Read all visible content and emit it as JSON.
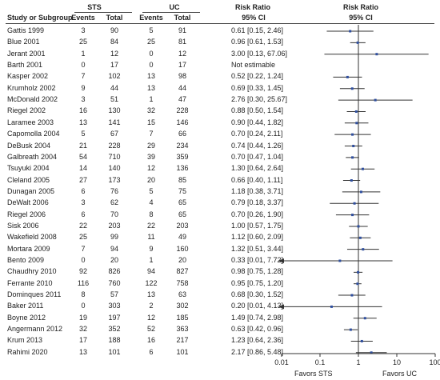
{
  "header": {
    "group1": "STS",
    "group2": "UC",
    "rr_title": "Risk Ratio",
    "rr_plot_title": "Risk Ratio",
    "study_col": "Study or Subgroup",
    "events1": "Events",
    "total1": "Total",
    "events2": "Events",
    "total2": "Total",
    "ci_col": "95% CI",
    "ci_plot": "95% CI"
  },
  "rows": [
    {
      "study": "Gattis 1999",
      "e1": "3",
      "t1": "90",
      "e2": "5",
      "t2": "91",
      "ci": "0.61 [0.15, 2.46]"
    },
    {
      "study": "Blue 2001",
      "e1": "25",
      "t1": "84",
      "e2": "25",
      "t2": "81",
      "ci": "0.96 [0.61, 1.53]"
    },
    {
      "study": "Jerant 2001",
      "e1": "1",
      "t1": "12",
      "e2": "0",
      "t2": "12",
      "ci": "3.00 [0.13, 67.06]"
    },
    {
      "study": "Barth 2001",
      "e1": "0",
      "t1": "17",
      "e2": "0",
      "t2": "17",
      "ci": "Not estimable"
    },
    {
      "study": "Kasper 2002",
      "e1": "7",
      "t1": "102",
      "e2": "13",
      "t2": "98",
      "ci": "0.52 [0.22, 1.24]"
    },
    {
      "study": "Krumholz 2002",
      "e1": "9",
      "t1": "44",
      "e2": "13",
      "t2": "44",
      "ci": "0.69 [0.33, 1.45]"
    },
    {
      "study": "McDonald 2002",
      "e1": "3",
      "t1": "51",
      "e2": "1",
      "t2": "47",
      "ci": "2.76 [0.30, 25.67]"
    },
    {
      "study": "Riegel 2002",
      "e1": "16",
      "t1": "130",
      "e2": "32",
      "t2": "228",
      "ci": "0.88 [0.50, 1.54]"
    },
    {
      "study": "Laramee 2003",
      "e1": "13",
      "t1": "141",
      "e2": "15",
      "t2": "146",
      "ci": "0.90 [0.44, 1.82]"
    },
    {
      "study": "Capomolla 2004",
      "e1": "5",
      "t1": "67",
      "e2": "7",
      "t2": "66",
      "ci": "0.70 [0.24, 2.11]"
    },
    {
      "study": "DeBusk 2004",
      "e1": "21",
      "t1": "228",
      "e2": "29",
      "t2": "234",
      "ci": "0.74 [0.44, 1.26]"
    },
    {
      "study": "Galbreath 2004",
      "e1": "54",
      "t1": "710",
      "e2": "39",
      "t2": "359",
      "ci": "0.70 [0.47, 1.04]"
    },
    {
      "study": "Tsuyuki 2004",
      "e1": "14",
      "t1": "140",
      "e2": "12",
      "t2": "136",
      "ci": "1.30 [0.64, 2.64]"
    },
    {
      "study": "Cleland 2005",
      "e1": "27",
      "t1": "173",
      "e2": "20",
      "t2": "85",
      "ci": "0.66 [0.40, 1.11]"
    },
    {
      "study": "Dunagan 2005",
      "e1": "6",
      "t1": "76",
      "e2": "5",
      "t2": "75",
      "ci": "1.18 [0.38, 3.71]"
    },
    {
      "study": "DeWalt 2006",
      "e1": "3",
      "t1": "62",
      "e2": "4",
      "t2": "65",
      "ci": "0.79 [0.18, 3.37]"
    },
    {
      "study": "Riegel 2006",
      "e1": "6",
      "t1": "70",
      "e2": "8",
      "t2": "65",
      "ci": "0.70 [0.26, 1.90]"
    },
    {
      "study": "Sisk 2006",
      "e1": "22",
      "t1": "203",
      "e2": "22",
      "t2": "203",
      "ci": "1.00 [0.57, 1.75]"
    },
    {
      "study": "Wakefield 2008",
      "e1": "25",
      "t1": "99",
      "e2": "11",
      "t2": "49",
      "ci": "1.12 [0.60, 2.09]"
    },
    {
      "study": "Mortara 2009",
      "e1": "7",
      "t1": "94",
      "e2": "9",
      "t2": "160",
      "ci": "1.32 [0.51, 3.44]"
    },
    {
      "study": "Bento 2009",
      "e1": "0",
      "t1": "20",
      "e2": "1",
      "t2": "20",
      "ci": "0.33 [0.01, 7.72]"
    },
    {
      "study": "Chaudhry 2010",
      "e1": "92",
      "t1": "826",
      "e2": "94",
      "t2": "827",
      "ci": "0.98 [0.75, 1.28]"
    },
    {
      "study": "Ferrante 2010",
      "e1": "116",
      "t1": "760",
      "e2": "122",
      "t2": "758",
      "ci": "0.95 [0.75, 1.20]"
    },
    {
      "study": "Dominques 2011",
      "e1": "8",
      "t1": "57",
      "e2": "13",
      "t2": "63",
      "ci": "0.68 [0.30, 1.52]"
    },
    {
      "study": "Baker 2011",
      "e1": "0",
      "t1": "303",
      "e2": "2",
      "t2": "302",
      "ci": "0.20 [0.01, 4.13]"
    },
    {
      "study": "Boyne 2012",
      "e1": "19",
      "t1": "197",
      "e2": "12",
      "t2": "185",
      "ci": "1.49 [0.74, 2.98]"
    },
    {
      "study": "Angermann 2012",
      "e1": "32",
      "t1": "352",
      "e2": "52",
      "t2": "363",
      "ci": "0.63 [0.42, 0.96]"
    },
    {
      "study": "Krum 2013",
      "e1": "17",
      "t1": "188",
      "e2": "16",
      "t2": "217",
      "ci": "1.23 [0.64, 2.36]"
    },
    {
      "study": "Rahimi 2020",
      "e1": "13",
      "t1": "101",
      "e2": "6",
      "t2": "101",
      "ci": "2.17 [0.86, 5.48]"
    }
  ],
  "axis": {
    "ticks": [
      "0.01",
      "0.1",
      "1",
      "10",
      "100"
    ],
    "favors_left": "Favors  STS",
    "favors_right": "Favors  UC"
  },
  "chart_data": {
    "type": "forest",
    "scale": "log",
    "xlim": [
      0.01,
      100
    ],
    "reference_line": 1,
    "tick_values": [
      0.01,
      0.1,
      1,
      10,
      100
    ],
    "points": [
      {
        "study": "Gattis 1999",
        "rr": 0.61,
        "lo": 0.15,
        "hi": 2.46
      },
      {
        "study": "Blue 2001",
        "rr": 0.96,
        "lo": 0.61,
        "hi": 1.53
      },
      {
        "study": "Jerant 2001",
        "rr": 3.0,
        "lo": 0.13,
        "hi": 67.06
      },
      {
        "study": "Barth 2001",
        "rr": null,
        "lo": null,
        "hi": null
      },
      {
        "study": "Kasper 2002",
        "rr": 0.52,
        "lo": 0.22,
        "hi": 1.24
      },
      {
        "study": "Krumholz 2002",
        "rr": 0.69,
        "lo": 0.33,
        "hi": 1.45
      },
      {
        "study": "McDonald 2002",
        "rr": 2.76,
        "lo": 0.3,
        "hi": 25.67
      },
      {
        "study": "Riegel 2002",
        "rr": 0.88,
        "lo": 0.5,
        "hi": 1.54
      },
      {
        "study": "Laramee 2003",
        "rr": 0.9,
        "lo": 0.44,
        "hi": 1.82
      },
      {
        "study": "Capomolla 2004",
        "rr": 0.7,
        "lo": 0.24,
        "hi": 2.11
      },
      {
        "study": "DeBusk 2004",
        "rr": 0.74,
        "lo": 0.44,
        "hi": 1.26
      },
      {
        "study": "Galbreath 2004",
        "rr": 0.7,
        "lo": 0.47,
        "hi": 1.04
      },
      {
        "study": "Tsuyuki 2004",
        "rr": 1.3,
        "lo": 0.64,
        "hi": 2.64
      },
      {
        "study": "Cleland 2005",
        "rr": 0.66,
        "lo": 0.4,
        "hi": 1.11
      },
      {
        "study": "Dunagan 2005",
        "rr": 1.18,
        "lo": 0.38,
        "hi": 3.71
      },
      {
        "study": "DeWalt 2006",
        "rr": 0.79,
        "lo": 0.18,
        "hi": 3.37
      },
      {
        "study": "Riegel 2006",
        "rr": 0.7,
        "lo": 0.26,
        "hi": 1.9
      },
      {
        "study": "Sisk 2006",
        "rr": 1.0,
        "lo": 0.57,
        "hi": 1.75
      },
      {
        "study": "Wakefield 2008",
        "rr": 1.12,
        "lo": 0.6,
        "hi": 2.09
      },
      {
        "study": "Mortara 2009",
        "rr": 1.32,
        "lo": 0.51,
        "hi": 3.44
      },
      {
        "study": "Bento 2009",
        "rr": 0.33,
        "lo": 0.01,
        "hi": 7.72
      },
      {
        "study": "Chaudhry 2010",
        "rr": 0.98,
        "lo": 0.75,
        "hi": 1.28
      },
      {
        "study": "Ferrante 2010",
        "rr": 0.95,
        "lo": 0.75,
        "hi": 1.2
      },
      {
        "study": "Dominques 2011",
        "rr": 0.68,
        "lo": 0.3,
        "hi": 1.52
      },
      {
        "study": "Baker 2011",
        "rr": 0.2,
        "lo": 0.01,
        "hi": 4.13
      },
      {
        "study": "Boyne 2012",
        "rr": 1.49,
        "lo": 0.74,
        "hi": 2.98
      },
      {
        "study": "Angermann 2012",
        "rr": 0.63,
        "lo": 0.42,
        "hi": 0.96
      },
      {
        "study": "Krum 2013",
        "rr": 1.23,
        "lo": 0.64,
        "hi": 2.36
      },
      {
        "study": "Rahimi 2020",
        "rr": 2.17,
        "lo": 0.86,
        "hi": 5.48
      }
    ],
    "marker_color": "#2f4f9f"
  }
}
